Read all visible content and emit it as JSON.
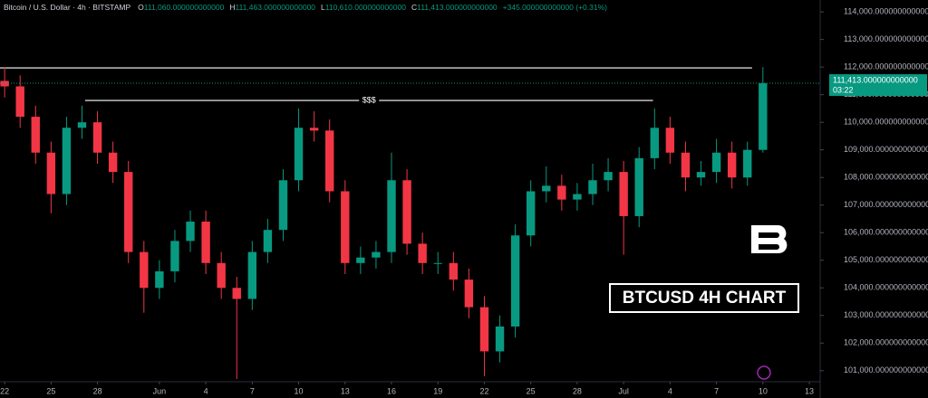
{
  "chart_data": {
    "type": "candlestick",
    "title": "Bitcoin / U.S. Dollar · 4h · BITSTAMP",
    "ohlc_header": [
      {
        "name": "O",
        "value": 111060,
        "label": "111,060.000000000000"
      },
      {
        "name": "H",
        "value": 111463,
        "label": "111,463.000000000000"
      },
      {
        "name": "L",
        "value": 110610,
        "label": "110,610.000000000000"
      },
      {
        "name": "C",
        "value": 111413,
        "label": "111,413.000000000000"
      }
    ],
    "change": {
      "value": 345,
      "label": "+345.000000000000 (+0.31%)"
    },
    "up_color": "#089981",
    "down_color": "#f23645",
    "open": [
      111500,
      111300,
      110200,
      108900,
      107400,
      109800,
      110000,
      108900,
      108200,
      105300,
      104000,
      104600,
      105700,
      106400,
      104900,
      104000,
      103600,
      105300,
      106100,
      107900,
      109800,
      109700,
      107500,
      104900,
      105100,
      105300,
      107900,
      105600,
      104900,
      104900,
      104300,
      103300,
      101700,
      102600,
      105900,
      107500,
      107700,
      107200,
      107400,
      107900,
      108200,
      106600,
      108700,
      109800,
      108900,
      108000,
      108200,
      108900,
      108000,
      109000
    ],
    "high": [
      112000,
      111700,
      110600,
      109300,
      110200,
      110600,
      110400,
      109300,
      108600,
      105700,
      105000,
      106100,
      106800,
      106800,
      105300,
      104400,
      105700,
      106500,
      108300,
      110500,
      110400,
      110100,
      107900,
      105500,
      105700,
      108900,
      108300,
      106000,
      105300,
      105300,
      104700,
      103700,
      103000,
      106300,
      107900,
      108400,
      108100,
      107800,
      108500,
      108700,
      108600,
      109100,
      110500,
      110200,
      109300,
      108600,
      109400,
      109300,
      109300,
      112000
    ],
    "low": [
      110900,
      109800,
      108500,
      106700,
      107000,
      109400,
      108500,
      107800,
      104900,
      103100,
      103600,
      104200,
      105300,
      104500,
      103600,
      100700,
      103200,
      104900,
      105700,
      107500,
      109300,
      107100,
      104500,
      104500,
      104700,
      104900,
      105200,
      104500,
      104500,
      103900,
      102900,
      100800,
      101300,
      102200,
      105500,
      107100,
      106800,
      106800,
      107000,
      107500,
      105200,
      106200,
      108300,
      108500,
      107500,
      107700,
      107800,
      107600,
      107700,
      108900
    ],
    "close": [
      111300,
      110200,
      108900,
      107400,
      109800,
      110000,
      108900,
      108200,
      105300,
      104000,
      104600,
      105700,
      106400,
      104900,
      104000,
      103600,
      105300,
      106100,
      107900,
      109800,
      109700,
      107500,
      104900,
      105100,
      105300,
      107900,
      105600,
      104900,
      104900,
      104300,
      103300,
      101700,
      102600,
      105900,
      107500,
      107700,
      107200,
      107400,
      107900,
      108200,
      106600,
      108700,
      109800,
      108900,
      108000,
      108200,
      108900,
      108000,
      109000,
      111413
    ],
    "xlim": [
      -0.3,
      52.7
    ],
    "xticks": [
      {
        "value": 0,
        "label": "22"
      },
      {
        "value": 3,
        "label": "25"
      },
      {
        "value": 6,
        "label": "28"
      },
      {
        "value": 10,
        "label": "Jun"
      },
      {
        "value": 13,
        "label": "4"
      },
      {
        "value": 16,
        "label": "7"
      },
      {
        "value": 19,
        "label": "10"
      },
      {
        "value": 22,
        "label": "13"
      },
      {
        "value": 25,
        "label": "16"
      },
      {
        "value": 28,
        "label": "19"
      },
      {
        "value": 31,
        "label": "22"
      },
      {
        "value": 34,
        "label": "25"
      },
      {
        "value": 37,
        "label": "28"
      },
      {
        "value": 40,
        "label": "Jul"
      },
      {
        "value": 43,
        "label": "4"
      },
      {
        "value": 46,
        "label": "7"
      },
      {
        "value": 49,
        "label": "10"
      },
      {
        "value": 52,
        "label": "13"
      }
    ],
    "ylim": [
      100600,
      114430
    ],
    "yticks": [
      {
        "value": 101000,
        "label": "101,000.000000000000"
      },
      {
        "value": 102000,
        "label": "102,000.000000000000"
      },
      {
        "value": 103000,
        "label": "103,000.000000000000"
      },
      {
        "value": 104000,
        "label": "104,000.000000000000"
      },
      {
        "value": 105000,
        "label": "105,000.000000000000"
      },
      {
        "value": 106000,
        "label": "106,000.000000000000"
      },
      {
        "value": 107000,
        "label": "107,000.000000000000"
      },
      {
        "value": 108000,
        "label": "108,000.000000000000"
      },
      {
        "value": 109000,
        "label": "109,000.000000000000"
      },
      {
        "value": 110000,
        "label": "110,000.000000000000"
      },
      {
        "value": 111000,
        "label": "111,000.000000000000"
      },
      {
        "value": 112000,
        "label": "112,000.000000000000"
      },
      {
        "value": 113000,
        "label": "113,000.000000000000"
      },
      {
        "value": 114000,
        "label": "114,000.000000000000"
      }
    ],
    "last_price": {
      "value": 111413,
      "label": "111,413.000000000000",
      "countdown": "03:22"
    },
    "levels": [
      {
        "value": 111970,
        "start": -0.3,
        "end": 48.3
      },
      {
        "value": 110790,
        "start": 5.2,
        "end": 41.9,
        "label": "$$$"
      }
    ],
    "watermark": "BTCUSD 4H CHART"
  }
}
